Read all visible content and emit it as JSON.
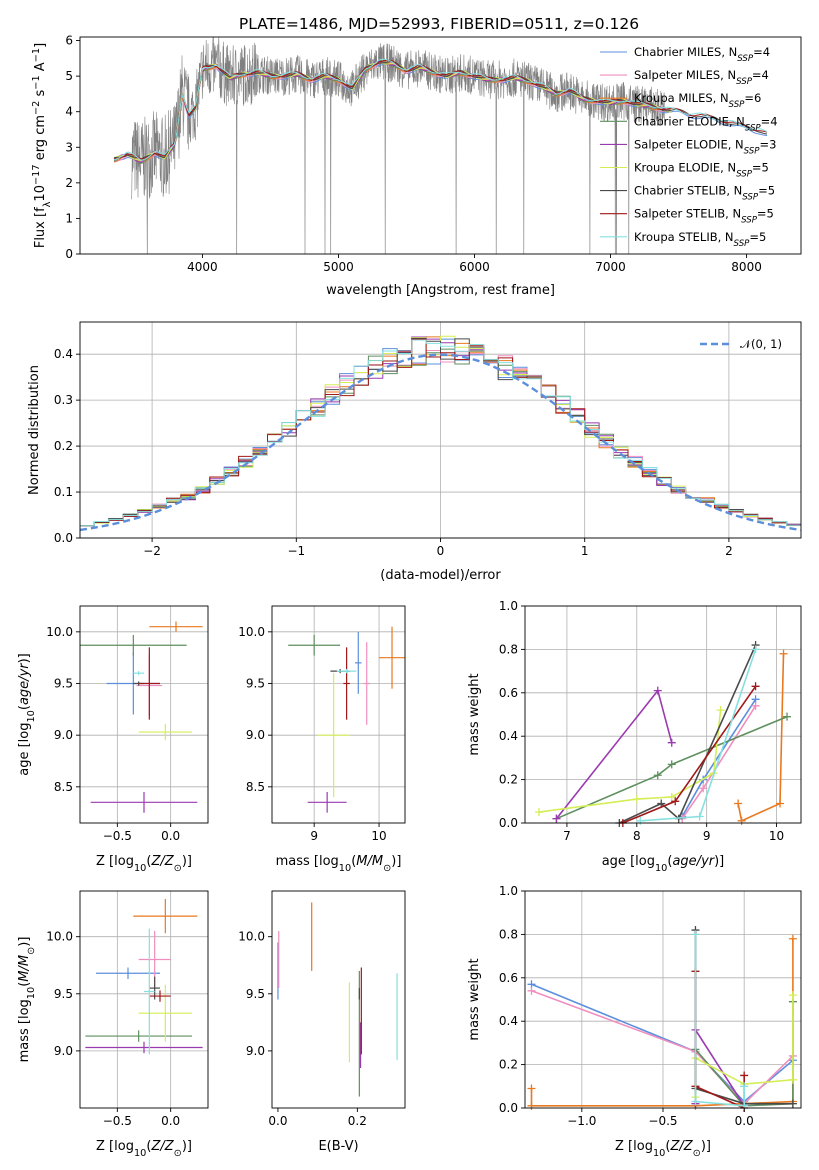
{
  "figure_title": "PLATE=1486, MJD=52993, FIBERID=0511, z=0.126",
  "colors": {
    "Chabrier MILES": "#5b8fdc",
    "Salpeter MILES": "#f08fbf",
    "Kroupa MILES": "#e8791f",
    "Chabrier ELODIE": "#5e8f5e",
    "Salpeter ELODIE": "#9a3ab0",
    "Kroupa ELODIE": "#d4ee55",
    "Chabrier STELIB": "#4a4a4a",
    "Salpeter STELIB": "#a01818",
    "Kroupa STELIB": "#86e0e0",
    "data": "#808080",
    "normal": "#5b8fdc"
  },
  "chart_data": [
    {
      "id": "spectrum",
      "type": "line",
      "xlabel": "wavelength [Angstrom, rest frame]",
      "ylabel": "Flux [f_λ10^-17 erg cm^-2 s^-1 A^-1]",
      "xlim": [
        3100,
        8400
      ],
      "ylim": [
        0,
        6.1
      ],
      "xticks": [
        4000,
        5000,
        6000,
        7000,
        8000
      ],
      "yticks": [
        0,
        1,
        2,
        3,
        4,
        5,
        6
      ],
      "legend_position": "right",
      "legend": [
        {
          "label": "Chabrier MILES, N",
          "sub": "SSP",
          "suffix": "=4"
        },
        {
          "label": "Salpeter MILES, N",
          "sub": "SSP",
          "suffix": "=4"
        },
        {
          "label": "Kroupa MILES, N",
          "sub": "SSP",
          "suffix": "=6"
        },
        {
          "label": "Chabrier ELODIE, N",
          "sub": "SSP",
          "suffix": "=4"
        },
        {
          "label": "Salpeter ELODIE, N",
          "sub": "SSP",
          "suffix": "=3"
        },
        {
          "label": "Kroupa ELODIE, N",
          "sub": "SSP",
          "suffix": "=5"
        },
        {
          "label": "Chabrier STELIB, N",
          "sub": "SSP",
          "suffix": "=5"
        },
        {
          "label": "Salpeter STELIB, N",
          "sub": "SSP",
          "suffix": "=5"
        },
        {
          "label": "Kroupa STELIB, N",
          "sub": "SSP",
          "suffix": "=5"
        }
      ],
      "model_continuum": {
        "x": [
          3350,
          3450,
          3550,
          3650,
          3720,
          3800,
          3850,
          3900,
          3950,
          4000,
          4100,
          4200,
          4300,
          4400,
          4500,
          4600,
          4700,
          4800,
          4900,
          5000,
          5100,
          5200,
          5300,
          5400,
          5500,
          5600,
          5700,
          5800,
          5900,
          6000,
          6100,
          6200,
          6300,
          6400,
          6500,
          6600,
          6700,
          6800,
          6900,
          7000,
          7100,
          7200,
          7300,
          7400,
          7500,
          7600,
          7700,
          7800,
          7900,
          8000,
          8100,
          8150
        ],
        "y": [
          2.65,
          2.8,
          2.6,
          2.85,
          2.7,
          3.1,
          4.5,
          3.9,
          4.1,
          5.2,
          5.3,
          4.95,
          5.05,
          5.1,
          5.0,
          5.0,
          5.05,
          4.9,
          5.0,
          4.9,
          4.65,
          5.2,
          5.4,
          5.35,
          5.15,
          5.25,
          5.1,
          5.0,
          5.1,
          5.0,
          4.9,
          4.9,
          4.95,
          4.85,
          4.7,
          4.5,
          4.6,
          4.35,
          4.3,
          4.25,
          4.3,
          4.2,
          4.15,
          4.05,
          4.0,
          3.9,
          3.85,
          3.75,
          3.65,
          3.55,
          3.45,
          3.35
        ]
      }
    },
    {
      "id": "residuals",
      "type": "line",
      "xlabel": "(data-model)/error",
      "ylabel": "Normed distribution",
      "xlim": [
        -2.5,
        2.5
      ],
      "ylim": [
        0,
        0.47
      ],
      "xticks": [
        -2,
        -1,
        0,
        1,
        2
      ],
      "yticks": [
        0.0,
        0.1,
        0.2,
        0.3,
        0.4
      ],
      "legend": "𝒩(0, 1)",
      "legend_position": "top-right",
      "grid": true,
      "bin_width": 0.1
    },
    {
      "id": "age-vs-Z",
      "type": "scatter",
      "xlabel": "Z [log10(Z/Z_sun)]",
      "ylabel": "age [log10(age/yr)]",
      "xlim": [
        -0.85,
        0.35
      ],
      "ylim": [
        8.15,
        10.25
      ],
      "xticks": [
        -0.5,
        0.0
      ],
      "yticks": [
        8.5,
        9.0,
        9.5,
        10.0
      ],
      "grid": true,
      "points": [
        {
          "m": "Chabrier MILES",
          "x": -0.35,
          "xe": 0.25,
          "y": 9.5,
          "ye": 0.3
        },
        {
          "m": "Salpeter MILES",
          "x": -0.2,
          "xe": 0.12,
          "y": 9.48,
          "ye": 0.3
        },
        {
          "m": "Kroupa MILES",
          "x": 0.05,
          "xe": 0.25,
          "y": 10.05,
          "ye": 0.05
        },
        {
          "m": "Chabrier ELODIE",
          "x": -0.35,
          "xe": 0.5,
          "y": 9.87,
          "ye": 0.1
        },
        {
          "m": "Salpeter ELODIE",
          "x": -0.25,
          "xe": 0.5,
          "y": 8.35,
          "ye": 0.1
        },
        {
          "m": "Kroupa ELODIE",
          "x": -0.05,
          "xe": 0.25,
          "y": 9.03,
          "ye": 0.08
        },
        {
          "m": "Chabrier STELIB",
          "x": -0.3,
          "xe": 0.05,
          "y": 9.5,
          "ye": 0.02
        },
        {
          "m": "Salpeter STELIB",
          "x": -0.2,
          "xe": 0.1,
          "y": 9.5,
          "ye": 0.35
        },
        {
          "m": "Kroupa STELIB",
          "x": -0.3,
          "xe": 0.05,
          "y": 9.6,
          "ye": 0.02
        }
      ]
    },
    {
      "id": "age-vs-mass",
      "type": "scatter",
      "xlabel": "mass [log10(M/M_sun)]",
      "ylabel": "",
      "xlim": [
        8.35,
        10.4
      ],
      "ylim": [
        8.15,
        10.25
      ],
      "xticks": [
        9,
        10
      ],
      "yticks": [
        8.5,
        9.0,
        9.5,
        10.0
      ],
      "grid": true,
      "points": [
        {
          "m": "Chabrier MILES",
          "x": 9.68,
          "xe": 0.05,
          "y": 9.7,
          "ye": 0.3
        },
        {
          "m": "Salpeter MILES",
          "x": 9.81,
          "xe": 0.05,
          "y": 9.5,
          "ye": 0.4
        },
        {
          "m": "Kroupa MILES",
          "x": 10.2,
          "xe": 0.2,
          "y": 9.75,
          "ye": 0.3
        },
        {
          "m": "Chabrier ELODIE",
          "x": 9.0,
          "xe": 0.4,
          "y": 9.87,
          "ye": 0.1
        },
        {
          "m": "Salpeter ELODIE",
          "x": 9.2,
          "xe": 0.3,
          "y": 8.35,
          "ye": 0.1
        },
        {
          "m": "Kroupa ELODIE",
          "x": 9.3,
          "xe": 0.25,
          "y": 9.0,
          "ye": 0.6
        },
        {
          "m": "Chabrier STELIB",
          "x": 9.4,
          "xe": 0.15,
          "y": 9.62,
          "ye": 0.02
        },
        {
          "m": "Salpeter STELIB",
          "x": 9.5,
          "xe": 0.05,
          "y": 9.5,
          "ye": 0.35
        },
        {
          "m": "Kroupa STELIB",
          "x": 9.5,
          "xe": 0.15,
          "y": 9.62,
          "ye": 0.02
        }
      ]
    },
    {
      "id": "weight-vs-age",
      "type": "line",
      "xlabel": "age [log10(age/yr)]",
      "ylabel": "mass weight",
      "xlim": [
        6.4,
        10.35
      ],
      "ylim": [
        0,
        1.0
      ],
      "xticks": [
        7,
        8,
        9,
        10
      ],
      "yticks": [
        0.0,
        0.2,
        0.4,
        0.6,
        0.8,
        1.0
      ],
      "grid": true,
      "series": [
        {
          "m": "Chabrier MILES",
          "x": [
            8.65,
            8.95,
            9.7
          ],
          "y": [
            0.03,
            0.2,
            0.57
          ]
        },
        {
          "m": "Salpeter MILES",
          "x": [
            8.65,
            8.95,
            9.7
          ],
          "y": [
            0.02,
            0.16,
            0.54
          ]
        },
        {
          "m": "Kroupa MILES",
          "x": [
            9.45,
            9.5,
            10.05,
            10.1
          ],
          "y": [
            0.09,
            0.01,
            0.09,
            0.78
          ]
        },
        {
          "m": "Chabrier ELODIE",
          "x": [
            6.85,
            8.3,
            8.5,
            10.15
          ],
          "y": [
            0.02,
            0.22,
            0.27,
            0.49
          ]
        },
        {
          "m": "Salpeter ELODIE",
          "x": [
            6.85,
            8.3,
            8.5
          ],
          "y": [
            0.02,
            0.61,
            0.37
          ]
        },
        {
          "m": "Kroupa ELODIE",
          "x": [
            6.6,
            8.0,
            8.5,
            9.1,
            9.2
          ],
          "y": [
            0.05,
            0.11,
            0.12,
            0.23,
            0.52
          ]
        },
        {
          "m": "Chabrier STELIB",
          "x": [
            7.75,
            8.35,
            8.6,
            9.7
          ],
          "y": [
            0.0,
            0.09,
            0.02,
            0.82
          ]
        },
        {
          "m": "Salpeter STELIB",
          "x": [
            7.8,
            8.55,
            9.7
          ],
          "y": [
            0.0,
            0.1,
            0.63
          ]
        },
        {
          "m": "Kroupa STELIB",
          "x": [
            8.05,
            8.9,
            9.7
          ],
          "y": [
            0.01,
            0.03,
            0.8
          ]
        }
      ]
    },
    {
      "id": "mass-vs-Z",
      "type": "scatter",
      "xlabel": "Z [log10(Z/Z_sun)]",
      "ylabel": "mass [log10(M/M_sun)]",
      "xlim": [
        -0.85,
        0.35
      ],
      "ylim": [
        8.5,
        10.4
      ],
      "xticks": [
        -0.5,
        0.0
      ],
      "yticks": [
        9.0,
        9.5,
        10.0
      ],
      "grid": true,
      "points": [
        {
          "m": "Chabrier MILES",
          "x": -0.4,
          "xe": 0.3,
          "y": 9.68,
          "ye": 0.05
        },
        {
          "m": "Salpeter MILES",
          "x": -0.15,
          "xe": 0.15,
          "y": 9.8,
          "ye": 0.25
        },
        {
          "m": "Kroupa MILES",
          "x": -0.05,
          "xe": 0.3,
          "y": 10.18,
          "ye": 0.15
        },
        {
          "m": "Chabrier ELODIE",
          "x": -0.3,
          "xe": 0.5,
          "y": 9.13,
          "ye": 0.05
        },
        {
          "m": "Salpeter ELODIE",
          "x": -0.25,
          "xe": 0.55,
          "y": 9.03,
          "ye": 0.05
        },
        {
          "m": "Kroupa ELODIE",
          "x": -0.05,
          "xe": 0.25,
          "y": 9.33,
          "ye": 0.25
        },
        {
          "m": "Chabrier STELIB",
          "x": -0.15,
          "xe": 0.05,
          "y": 9.55,
          "ye": 0.1
        },
        {
          "m": "Salpeter STELIB",
          "x": -0.1,
          "xe": 0.1,
          "y": 9.48,
          "ye": 0.05
        },
        {
          "m": "Kroupa STELIB",
          "x": -0.2,
          "xe": 0.05,
          "y": 9.52,
          "ye": 0.55
        }
      ]
    },
    {
      "id": "mass-vs-ebv",
      "type": "scatter",
      "xlabel": "E(B-V)",
      "ylabel": "",
      "xlim": [
        -0.015,
        0.32
      ],
      "ylim": [
        8.5,
        10.4
      ],
      "xticks": [
        0.0,
        0.2
      ],
      "yticks": [
        9.0,
        9.5,
        10.0
      ],
      "grid": false,
      "points": [
        {
          "m": "Chabrier MILES",
          "x": 0.0,
          "y": 9.7,
          "ye": 0.25
        },
        {
          "m": "Salpeter MILES",
          "x": 0.002,
          "y": 9.8,
          "ye": 0.25
        },
        {
          "m": "Kroupa MILES",
          "x": 0.085,
          "y": 10.0,
          "ye": 0.3
        },
        {
          "m": "Chabrier ELODIE",
          "x": 0.205,
          "y": 9.15,
          "ye": 0.55
        },
        {
          "m": "Salpeter ELODIE",
          "x": 0.208,
          "y": 9.05,
          "ye": 0.2
        },
        {
          "m": "Kroupa ELODIE",
          "x": 0.18,
          "y": 9.25,
          "ye": 0.35
        },
        {
          "m": "Chabrier STELIB",
          "x": 0.205,
          "y": 9.5,
          "ye": 0.05
        },
        {
          "m": "Salpeter STELIB",
          "x": 0.21,
          "y": 9.35,
          "ye": 0.38
        },
        {
          "m": "Kroupa STELIB",
          "x": 0.3,
          "y": 9.3,
          "ye": 0.38
        }
      ]
    },
    {
      "id": "weight-vs-Z",
      "type": "line",
      "xlabel": "Z [log10(Z/Z_sun)]",
      "ylabel": "mass weight",
      "xlim": [
        -1.35,
        0.35
      ],
      "ylim": [
        0,
        1.0
      ],
      "xticks": [
        -1.0,
        -0.5,
        0.0
      ],
      "yticks": [
        0.0,
        0.2,
        0.4,
        0.6,
        0.8,
        1.0
      ],
      "grid": true,
      "series": [
        {
          "m": "Chabrier MILES",
          "x": [
            -1.31,
            -0.3,
            0.0,
            0.3
          ],
          "y": [
            0.57,
            0.26,
            0.03,
            0.22
          ]
        },
        {
          "m": "Salpeter MILES",
          "x": [
            -1.31,
            -0.3,
            0.0,
            0.3
          ],
          "y": [
            0.54,
            0.26,
            0.02,
            0.24
          ]
        },
        {
          "m": "Kroupa MILES",
          "x": [
            -1.31,
            -1.31,
            -0.3,
            0.3,
            0.3
          ],
          "y": [
            0.09,
            0.01,
            0.01,
            0.03,
            0.78
          ]
        },
        {
          "m": "Chabrier ELODIE",
          "x": [
            -0.3,
            -0.3,
            0.0,
            0.3,
            0.3
          ],
          "y": [
            0.02,
            0.27,
            0.01,
            0.02,
            0.49
          ]
        },
        {
          "m": "Salpeter ELODIE",
          "x": [
            -0.3,
            -0.3,
            0.0
          ],
          "y": [
            0.02,
            0.36,
            0.01
          ]
        },
        {
          "m": "Kroupa ELODIE",
          "x": [
            -0.3,
            -0.3,
            0.0,
            0.3,
            0.3
          ],
          "y": [
            0.05,
            0.23,
            0.11,
            0.13,
            0.52
          ]
        },
        {
          "m": "Chabrier STELIB",
          "x": [
            -0.3,
            -0.3,
            0.0,
            0.3
          ],
          "y": [
            0.82,
            0.09,
            0.02,
            0.02
          ]
        },
        {
          "m": "Salpeter STELIB",
          "x": [
            -0.3,
            -0.3,
            0.0,
            0.0
          ],
          "y": [
            0.63,
            0.1,
            0.0,
            0.15
          ]
        },
        {
          "m": "Kroupa STELIB",
          "x": [
            -0.3,
            -0.3,
            0.0,
            0.0
          ],
          "y": [
            0.8,
            0.03,
            0.01,
            0.1
          ]
        }
      ]
    }
  ]
}
